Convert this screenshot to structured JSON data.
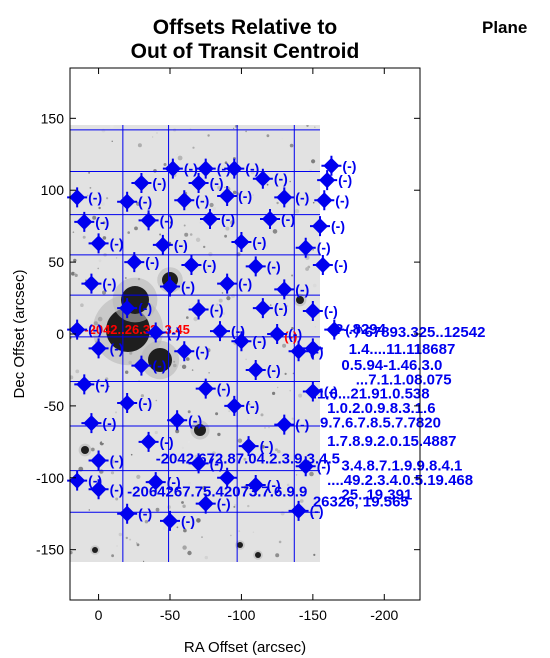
{
  "title_lines": [
    "Offsets Relative to",
    "Out of Transit Centroid"
  ],
  "corner_text": "Plane",
  "chart_data": {
    "type": "scatter",
    "title": "Offsets Relative to Out of Transit Centroid",
    "xlabel": "RA Offset (arcsec)",
    "ylabel": "Dec Offset (arcsec)",
    "xlim": [
      20,
      -225
    ],
    "ylim": [
      -185,
      185
    ],
    "x_ticks": [
      0,
      -50,
      -100,
      -150,
      -200
    ],
    "y_ticks": [
      150,
      100,
      50,
      0,
      -50,
      -100,
      -150
    ],
    "x_tick_labels": [
      "0",
      "-50",
      "-100",
      "-150",
      "-200"
    ],
    "y_tick_labels": [
      "150",
      "100",
      "50",
      "0",
      "-50",
      "-100",
      "-150"
    ],
    "background": "grayscale sky image",
    "grid_lines_ra": [
      -17,
      -49,
      -97,
      -137
    ],
    "grid_lines_dec": [
      142,
      113,
      83,
      55,
      27,
      -2,
      -33,
      -64,
      -95,
      -124
    ],
    "marker_color": "#0000ee",
    "centroid_color": "#ff0000",
    "markers": [
      {
        "x": -52,
        "y": 115,
        "label": "(-)"
      },
      {
        "x": -75,
        "y": 115,
        "label": "(-)"
      },
      {
        "x": -95,
        "y": 115,
        "label": "(-)"
      },
      {
        "x": -163,
        "y": 117,
        "label": "(-)"
      },
      {
        "x": -30,
        "y": 105,
        "label": "(-)"
      },
      {
        "x": -70,
        "y": 105,
        "label": "(-)"
      },
      {
        "x": -115,
        "y": 108,
        "label": "(-)"
      },
      {
        "x": -160,
        "y": 107,
        "label": "(-)"
      },
      {
        "x": 15,
        "y": 95,
        "label": "(-)"
      },
      {
        "x": -20,
        "y": 92,
        "label": "(-)"
      },
      {
        "x": -60,
        "y": 93,
        "label": "(-)"
      },
      {
        "x": -90,
        "y": 96,
        "label": "(-)"
      },
      {
        "x": -130,
        "y": 95,
        "label": "(-)"
      },
      {
        "x": -158,
        "y": 93,
        "label": "(-)"
      },
      {
        "x": 10,
        "y": 78,
        "label": "(-)"
      },
      {
        "x": -35,
        "y": 79,
        "label": "(-)"
      },
      {
        "x": -78,
        "y": 80,
        "label": "(-)"
      },
      {
        "x": -120,
        "y": 80,
        "label": "(-)"
      },
      {
        "x": -155,
        "y": 75,
        "label": "(-)"
      },
      {
        "x": 0,
        "y": 63,
        "label": "(-)"
      },
      {
        "x": -45,
        "y": 62,
        "label": "(-)"
      },
      {
        "x": -100,
        "y": 64,
        "label": "(-)"
      },
      {
        "x": -145,
        "y": 60,
        "label": "(-)"
      },
      {
        "x": -25,
        "y": 50,
        "label": "(-)"
      },
      {
        "x": -65,
        "y": 48,
        "label": "(-)"
      },
      {
        "x": -110,
        "y": 47,
        "label": "(-)"
      },
      {
        "x": -157,
        "y": 48,
        "label": "(-)"
      },
      {
        "x": 5,
        "y": 35,
        "label": "(-)"
      },
      {
        "x": -50,
        "y": 33,
        "label": "(-)"
      },
      {
        "x": -90,
        "y": 35,
        "label": "(-)"
      },
      {
        "x": -130,
        "y": 31,
        "label": "(-)"
      },
      {
        "x": -20,
        "y": 18,
        "label": "(-)"
      },
      {
        "x": -70,
        "y": 17,
        "label": "(-)"
      },
      {
        "x": -115,
        "y": 18,
        "label": "(-)"
      },
      {
        "x": -150,
        "y": 16,
        "label": "(-)"
      },
      {
        "x": 15,
        "y": 3,
        "label": "(-)"
      },
      {
        "x": -165,
        "y": 3,
        "label": "(-)"
      },
      {
        "x": -40,
        "y": 1,
        "label": "(-)"
      },
      {
        "x": -85,
        "y": 2,
        "label": "(-)"
      },
      {
        "x": -125,
        "y": 0,
        "label": "(-)"
      },
      {
        "x": -100,
        "y": -5,
        "label": "(-)"
      },
      {
        "x": 0,
        "y": -10,
        "label": "(-)"
      },
      {
        "x": -60,
        "y": -12,
        "label": "(-)"
      },
      {
        "x": -140,
        "y": -12,
        "label": "(-)"
      },
      {
        "x": -30,
        "y": -22,
        "label": "(-)"
      },
      {
        "x": -110,
        "y": -25,
        "label": "(-)"
      },
      {
        "x": 10,
        "y": -35,
        "label": "(-)"
      },
      {
        "x": -75,
        "y": -38,
        "label": "(-)"
      },
      {
        "x": -150,
        "y": -40,
        "label": "(-)"
      },
      {
        "x": -20,
        "y": -48,
        "label": "(-)"
      },
      {
        "x": -95,
        "y": -50,
        "label": "(-)"
      },
      {
        "x": 5,
        "y": -62,
        "label": "(-)"
      },
      {
        "x": -55,
        "y": -60,
        "label": "(-)"
      },
      {
        "x": -130,
        "y": -63,
        "label": "(-)"
      },
      {
        "x": -35,
        "y": -75,
        "label": "(-)"
      },
      {
        "x": -105,
        "y": -78,
        "label": "(-)"
      },
      {
        "x": 0,
        "y": -88,
        "label": "(-)"
      },
      {
        "x": -70,
        "y": -90,
        "label": "(-)"
      },
      {
        "x": -145,
        "y": -92,
        "label": "(-)"
      },
      {
        "x": 15,
        "y": -102,
        "label": "(-)"
      },
      {
        "x": -40,
        "y": -103,
        "label": "(-)"
      },
      {
        "x": -110,
        "y": -105,
        "label": "(-)"
      },
      {
        "x": -75,
        "y": -118,
        "label": "(-)"
      },
      {
        "x": -140,
        "y": -123,
        "label": "(-)"
      },
      {
        "x": 0,
        "y": -108,
        "label": "(-)"
      },
      {
        "x": -20,
        "y": -125,
        "label": "(-)"
      },
      {
        "x": -50,
        "y": -130,
        "label": "(-)"
      },
      {
        "x": -150,
        "y": -10,
        "label": ""
      },
      {
        "x": -90,
        "y": -100,
        "label": ""
      }
    ],
    "value_labels": [
      {
        "x": -165,
        "y": 0,
        "text": "?-.8294"
      },
      {
        "x": -180,
        "y": -2,
        "text": "^67893.325..12542"
      },
      {
        "x": -175,
        "y": -14,
        "text": "1.4....11.118687"
      },
      {
        "x": -170,
        "y": -25,
        "text": "0.5.94-1.46.3.0"
      },
      {
        "x": -180,
        "y": -35,
        "text": "...7.1.1.08.075"
      },
      {
        "x": -150,
        "y": -45,
        "text": ".1.6...21.91.0.538"
      },
      {
        "x": -160,
        "y": -55,
        "text": "1.0.2.0.9.8.3.1.6"
      },
      {
        "x": -155,
        "y": -65,
        "text": "9.7.6.7.8.5.7.7820"
      },
      {
        "x": -160,
        "y": -78,
        "text": "1.7.8.9.2.0.15.4887"
      },
      {
        "x": -40,
        "y": -90,
        "text": "-2042.672.87.04.2.3.9.3.4.5"
      },
      {
        "x": -170,
        "y": -95,
        "text": "3.4.8.7.1.9.9.8.4.1"
      },
      {
        "x": -160,
        "y": -105,
        "text": "....49.2.3.4.0.5.19.468"
      },
      {
        "x": -20,
        "y": -113,
        "text": "-2064267.75.42073.7.6.9.9"
      },
      {
        "x": -170,
        "y": -115,
        "text": "25..19.391"
      },
      {
        "x": -150,
        "y": -120,
        "text": "26326, 19.565"
      }
    ],
    "red_labels": [
      {
        "x": 10,
        "y": 0,
        "text": "-2042..26.32..3.45"
      },
      {
        "x": -130,
        "y": -5,
        "text": "(-)"
      }
    ]
  }
}
